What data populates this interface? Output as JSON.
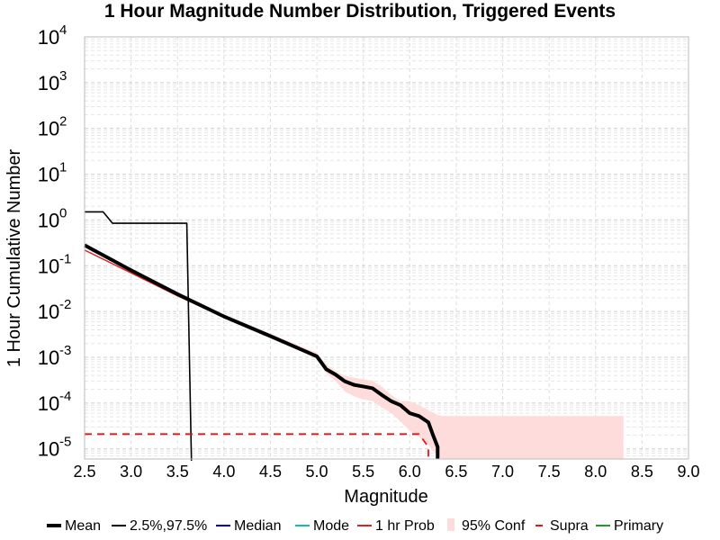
{
  "chart_data": {
    "type": "line",
    "title": "1 Hour Magnitude Number Distribution, Triggered Events",
    "xlabel": "Magnitude",
    "ylabel": "1 Hour Cumulative Number",
    "xlim": [
      2.5,
      9.0
    ],
    "ylim": [
      6e-06,
      10000
    ],
    "yscale": "log",
    "grid": true,
    "legend_placement": "bottom",
    "x_ticks": [
      "2.5",
      "3.0",
      "3.5",
      "4.0",
      "4.5",
      "5.0",
      "5.5",
      "6.0",
      "6.5",
      "7.0",
      "7.5",
      "8.0",
      "8.5",
      "9.0"
    ],
    "y_ticks": [
      {
        "base": "10",
        "exp": "-5"
      },
      {
        "base": "10",
        "exp": "-4"
      },
      {
        "base": "10",
        "exp": "-3"
      },
      {
        "base": "10",
        "exp": "-2"
      },
      {
        "base": "10",
        "exp": "-1"
      },
      {
        "base": "10",
        "exp": "0"
      },
      {
        "base": "10",
        "exp": "1"
      },
      {
        "base": "10",
        "exp": "2"
      },
      {
        "base": "10",
        "exp": "3"
      },
      {
        "base": "10",
        "exp": "4"
      }
    ],
    "legend": [
      {
        "label": "Mean",
        "color": "#000000",
        "style": "thick"
      },
      {
        "label": "2.5%,97.5%",
        "color": "#000000",
        "style": "solid"
      },
      {
        "label": "Median",
        "color": "#0000cc",
        "style": "solid"
      },
      {
        "label": "Mode",
        "color": "#1ab3c8",
        "style": "solid"
      },
      {
        "label": "1 hr Prob",
        "color": "#dd2222",
        "style": "solid"
      },
      {
        "label": "95% Conf",
        "color": "#ffdcdc",
        "style": "patch"
      },
      {
        "label": "Supra",
        "color": "#ee1111",
        "style": "dashed"
      },
      {
        "label": "Primary",
        "color": "#229922",
        "style": "solid"
      }
    ],
    "series": [
      {
        "name": "95% Conf",
        "kind": "band",
        "color": "#ffdcdc",
        "x": [
          4.0,
          4.5,
          5.0,
          5.1,
          5.2,
          5.3,
          5.4,
          5.5,
          5.6,
          5.7,
          5.8,
          5.9,
          6.0,
          6.1,
          6.2,
          6.3,
          6.35,
          8.3
        ],
        "upper": [
          0.0085,
          0.0033,
          0.00125,
          0.0007,
          0.0005,
          0.00039,
          0.00036,
          0.00033,
          0.00031,
          0.00023,
          0.00015,
          0.00011,
          0.00011,
          9e-05,
          7e-05,
          5.5e-05,
          5.2e-05,
          5.2e-05
        ],
        "lower": [
          0.0075,
          0.0028,
          0.00095,
          0.00045,
          0.0003,
          0.00018,
          0.00014,
          0.00012,
          0.00011,
          8e-05,
          6e-05,
          4e-05,
          2.5e-05,
          1.8e-05,
          1.2e-05,
          7e-06,
          6e-06,
          6e-06
        ]
      },
      {
        "name": "1 hr Prob",
        "color": "#dd2222",
        "width": 1.5,
        "x": [
          2.5,
          3.0,
          3.5,
          4.0
        ],
        "y": [
          0.22,
          0.07,
          0.022,
          0.0075
        ]
      },
      {
        "name": "Primary",
        "color": "#229922",
        "width": 1.5,
        "x": [
          3.6,
          4.0,
          4.5,
          5.0
        ],
        "y": [
          0.0185,
          0.0075,
          0.0029,
          0.0011
        ]
      },
      {
        "name": "2.5%,97.5%",
        "color": "#000000",
        "width": 1.6,
        "x": [
          2.5,
          2.7,
          2.8,
          3.6,
          3.65
        ],
        "y": [
          1.5,
          1.5,
          0.85,
          0.85,
          5.5e-06
        ]
      },
      {
        "name": "Supra",
        "color": "#ee1111",
        "width": 1.8,
        "dash": "8,6",
        "x": [
          2.5,
          6.1,
          6.2,
          6.2
        ],
        "y": [
          2.1e-05,
          2.1e-05,
          1.1e-05,
          6e-06
        ]
      },
      {
        "name": "Mean",
        "color": "#000000",
        "width": 4,
        "x": [
          2.5,
          3.0,
          3.5,
          4.0,
          4.5,
          5.0,
          5.1,
          5.2,
          5.3,
          5.4,
          5.5,
          5.6,
          5.7,
          5.8,
          5.9,
          6.0,
          6.1,
          6.2,
          6.25,
          6.3,
          6.3
        ],
        "y": [
          0.28,
          0.08,
          0.024,
          0.0078,
          0.0029,
          0.00105,
          0.00055,
          0.00042,
          0.0003,
          0.00025,
          0.00023,
          0.00021,
          0.00015,
          0.00011,
          9e-05,
          6e-05,
          5.2e-05,
          3.8e-05,
          2e-05,
          1.1e-05,
          6e-06
        ]
      }
    ]
  }
}
